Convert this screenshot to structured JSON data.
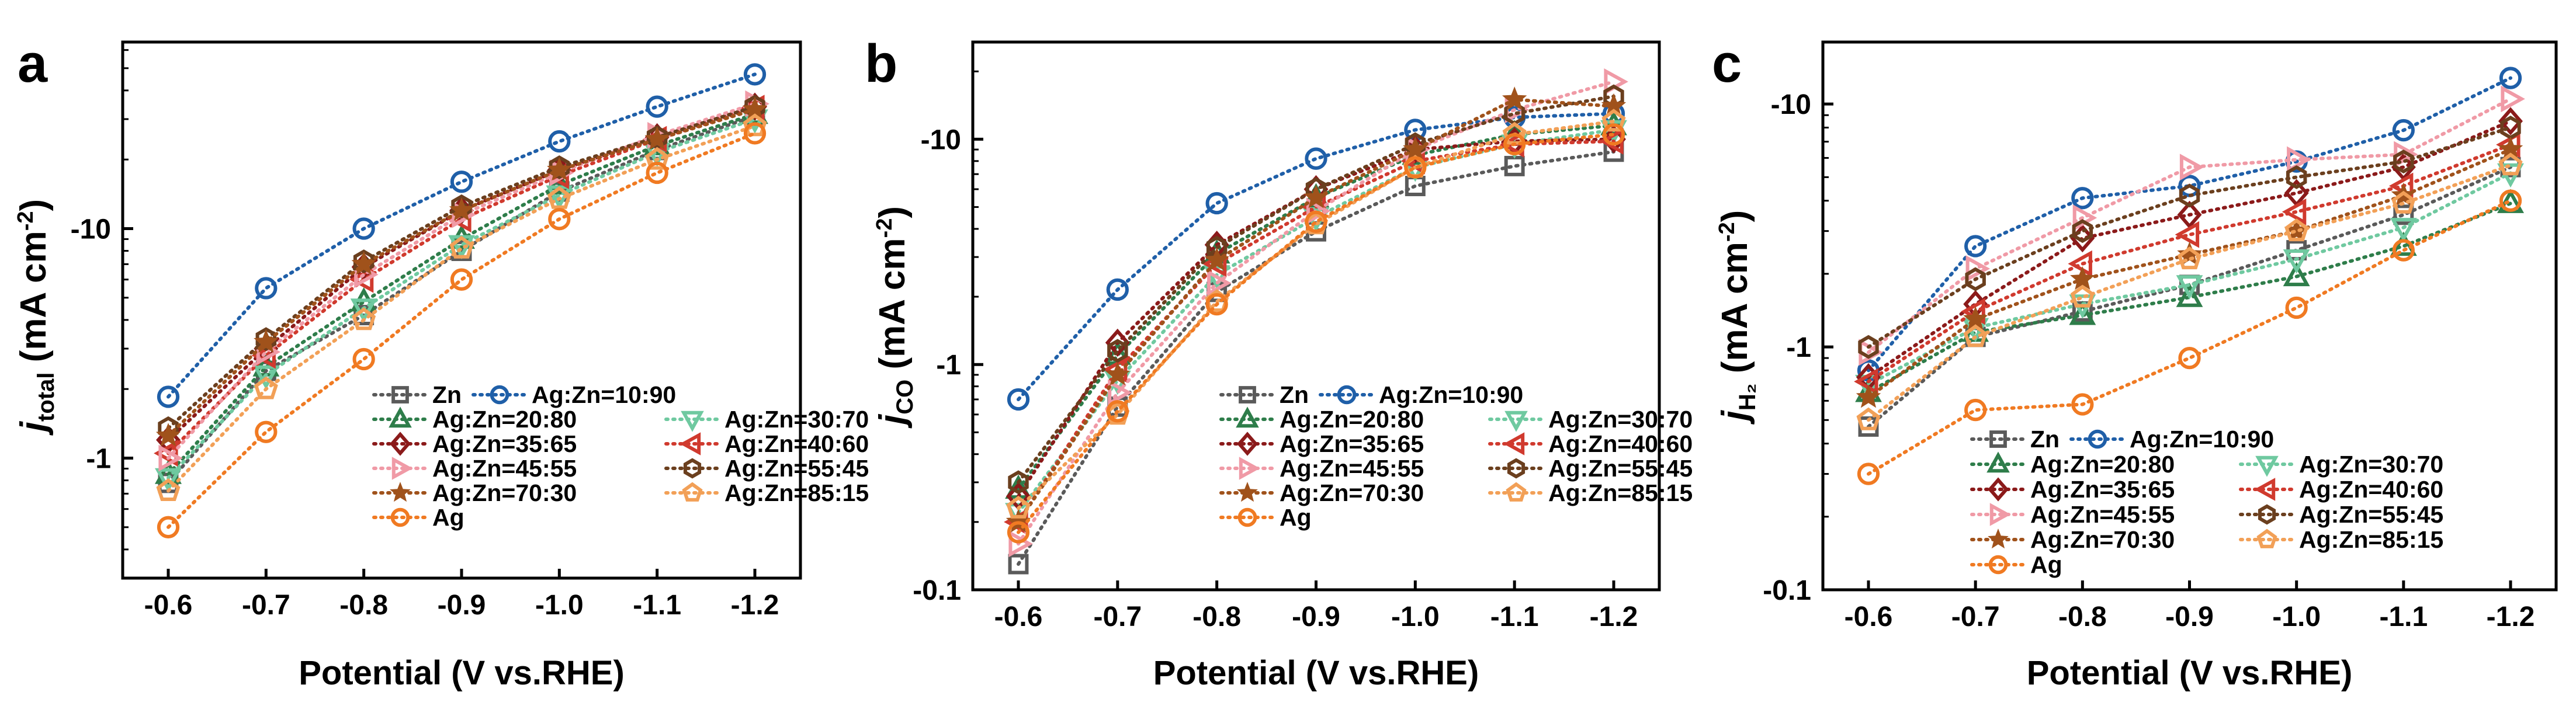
{
  "chart_data": [
    {
      "type": "line",
      "panel": "a",
      "title": "",
      "xlabel": "Potential (V vs.RHE)",
      "ylabel": {
        "main": "j",
        "sub": "total",
        "unit": " (mA cm",
        "exp": "-2",
        "close": ")"
      },
      "x_tick_labels": [
        "-0.6",
        "-0.7",
        "-0.8",
        "-0.9",
        "-1.0",
        "-1.1",
        "-1.2"
      ],
      "y_tick_labels": [
        {
          "value": 1,
          "label": "-1"
        },
        {
          "value": 10,
          "label": "-10"
        }
      ],
      "yscale": "log",
      "ylim": [
        0.3,
        65
      ],
      "legend_position": "lower-right",
      "series": [
        {
          "name": "Zn",
          "color": "#5a5a5a",
          "marker": "square",
          "values": [
            0.78,
            2.4,
            4.2,
            8.0,
            14.5,
            22.0,
            31.0
          ]
        },
        {
          "name": "Ag:Zn=10:90",
          "color": "#1f5fa8",
          "marker": "circle",
          "values": [
            1.85,
            5.5,
            10.0,
            16.0,
            24.0,
            34.0,
            47.0
          ]
        },
        {
          "name": "Ag:Zn=20:80",
          "color": "#2e7d4a",
          "marker": "triangle-up",
          "values": [
            0.85,
            2.5,
            4.8,
            9.0,
            15.5,
            23.0,
            31.5
          ]
        },
        {
          "name": "Ag:Zn=30:70",
          "color": "#6fc9a0",
          "marker": "triangle-down",
          "values": [
            0.82,
            2.3,
            4.5,
            8.5,
            14.0,
            21.5,
            30.0
          ]
        },
        {
          "name": "Ag:Zn=35:65",
          "color": "#8b1a1a",
          "marker": "diamond",
          "values": [
            1.2,
            3.0,
            6.8,
            12.0,
            18.0,
            25.0,
            34.0
          ]
        },
        {
          "name": "Ag:Zn=40:60",
          "color": "#d03a2e",
          "marker": "triangle-left",
          "values": [
            1.05,
            2.8,
            6.0,
            11.0,
            17.0,
            24.5,
            33.5
          ]
        },
        {
          "name": "Ag:Zn=45:55",
          "color": "#f09aa6",
          "marker": "triangle-right",
          "values": [
            1.0,
            2.9,
            6.3,
            11.5,
            17.5,
            25.5,
            35.0
          ]
        },
        {
          "name": "Ag:Zn=55:45",
          "color": "#6b3f1e",
          "marker": "hexagon",
          "values": [
            1.35,
            3.3,
            7.2,
            12.5,
            18.5,
            25.0,
            34.0
          ]
        },
        {
          "name": "Ag:Zn=70:30",
          "color": "#a0521b",
          "marker": "star",
          "values": [
            1.25,
            3.2,
            7.0,
            12.0,
            18.0,
            24.5,
            33.0
          ]
        },
        {
          "name": "Ag:Zn=85:15",
          "color": "#f2a057",
          "marker": "pentagon",
          "values": [
            0.72,
            2.0,
            4.0,
            8.2,
            13.5,
            20.0,
            28.0
          ]
        },
        {
          "name": "Ag",
          "color": "#f07a22",
          "marker": "circle",
          "values": [
            0.5,
            1.3,
            2.7,
            6.0,
            11.0,
            17.5,
            26.0
          ]
        }
      ]
    },
    {
      "type": "line",
      "panel": "b",
      "title": "",
      "xlabel": "Potential (V vs.RHE)",
      "ylabel": {
        "main": "j",
        "sub": "CO",
        "unit": " (mA cm",
        "exp": "-2",
        "close": ")"
      },
      "x_tick_labels": [
        "-0.6",
        "-0.7",
        "-0.8",
        "-0.9",
        "-1.0",
        "-1.1",
        "-1.2"
      ],
      "y_tick_labels": [
        {
          "value": 0.1,
          "label": "-0.1"
        },
        {
          "value": 1,
          "label": "-1"
        },
        {
          "value": 10,
          "label": "-10"
        }
      ],
      "yscale": "log",
      "ylim": [
        0.1,
        27
      ],
      "legend_position": "lower-right",
      "series": [
        {
          "name": "Zn",
          "color": "#5a5a5a",
          "marker": "square",
          "values": [
            0.13,
            0.65,
            2.1,
            3.9,
            6.2,
            7.6,
            8.8
          ]
        },
        {
          "name": "Ag:Zn=10:90",
          "color": "#1f5fa8",
          "marker": "circle",
          "values": [
            0.7,
            2.15,
            5.2,
            8.2,
            11.0,
            12.5,
            13.0
          ]
        },
        {
          "name": "Ag:Zn=20:80",
          "color": "#2e7d4a",
          "marker": "triangle-up",
          "values": [
            0.28,
            1.1,
            3.1,
            5.5,
            8.5,
            10.5,
            11.5
          ]
        },
        {
          "name": "Ag:Zn=30:70",
          "color": "#6fc9a0",
          "marker": "triangle-down",
          "values": [
            0.22,
            0.85,
            2.5,
            4.5,
            7.5,
            9.5,
            11.0
          ]
        },
        {
          "name": "Ag:Zn=35:65",
          "color": "#8b1a1a",
          "marker": "diamond",
          "values": [
            0.26,
            1.25,
            3.4,
            6.0,
            9.0,
            9.8,
            10.0
          ]
        },
        {
          "name": "Ag:Zn=40:60",
          "color": "#d03a2e",
          "marker": "triangle-left",
          "values": [
            0.2,
            0.95,
            2.8,
            5.0,
            8.0,
            9.5,
            9.8
          ]
        },
        {
          "name": "Ag:Zn=45:55",
          "color": "#f09aa6",
          "marker": "triangle-right",
          "values": [
            0.16,
            0.75,
            2.3,
            4.8,
            9.0,
            13.5,
            18.0
          ]
        },
        {
          "name": "Ag:Zn=55:45",
          "color": "#6b3f1e",
          "marker": "hexagon",
          "values": [
            0.3,
            1.15,
            3.3,
            6.0,
            9.5,
            13.0,
            15.5
          ]
        },
        {
          "name": "Ag:Zn=70:30",
          "color": "#a0521b",
          "marker": "star",
          "values": [
            0.2,
            0.9,
            2.9,
            5.5,
            9.0,
            15.0,
            14.0
          ]
        },
        {
          "name": "Ag:Zn=85:15",
          "color": "#f2a057",
          "marker": "pentagon",
          "values": [
            0.23,
            0.6,
            1.9,
            4.2,
            7.5,
            10.5,
            12.0
          ]
        },
        {
          "name": "Ag",
          "color": "#f07a22",
          "marker": "circle",
          "values": [
            0.18,
            0.62,
            1.85,
            4.3,
            7.5,
            9.5,
            10.5
          ]
        }
      ]
    },
    {
      "type": "line",
      "panel": "c",
      "title": "",
      "xlabel": "Potential (V vs.RHE)",
      "ylabel": {
        "main": "j",
        "sub": "H₂",
        "unit": " (mA cm",
        "exp": "-2",
        "close": ")"
      },
      "x_tick_labels": [
        "-0.6",
        "-0.7",
        "-0.8",
        "-0.9",
        "-1.0",
        "-1.1",
        "-1.2"
      ],
      "y_tick_labels": [
        {
          "value": 0.1,
          "label": "-0.1"
        },
        {
          "value": 1,
          "label": "-1"
        },
        {
          "value": 10,
          "label": "-10"
        }
      ],
      "yscale": "log",
      "ylim": [
        0.1,
        18
      ],
      "legend_position": "lower-right",
      "series": [
        {
          "name": "Zn",
          "color": "#5a5a5a",
          "marker": "square",
          "values": [
            0.47,
            1.1,
            1.4,
            1.8,
            2.5,
            3.5,
            5.5
          ]
        },
        {
          "name": "Ag:Zn=10:90",
          "color": "#1f5fa8",
          "marker": "circle",
          "values": [
            0.8,
            2.6,
            4.1,
            4.6,
            5.8,
            7.8,
            12.8
          ]
        },
        {
          "name": "Ag:Zn=20:80",
          "color": "#2e7d4a",
          "marker": "triangle-up",
          "values": [
            0.65,
            1.15,
            1.35,
            1.6,
            1.95,
            2.6,
            3.9
          ]
        },
        {
          "name": "Ag:Zn=30:70",
          "color": "#6fc9a0",
          "marker": "triangle-down",
          "values": [
            0.7,
            1.2,
            1.5,
            1.8,
            2.3,
            3.1,
            5.2
          ]
        },
        {
          "name": "Ag:Zn=35:65",
          "color": "#8b1a1a",
          "marker": "diamond",
          "values": [
            0.75,
            1.5,
            2.8,
            3.5,
            4.3,
            5.5,
            8.5
          ]
        },
        {
          "name": "Ag:Zn=40:60",
          "color": "#d03a2e",
          "marker": "triangle-left",
          "values": [
            0.72,
            1.4,
            2.2,
            2.9,
            3.6,
            4.6,
            6.8
          ]
        },
        {
          "name": "Ag:Zn=45:55",
          "color": "#f09aa6",
          "marker": "triangle-right",
          "values": [
            0.95,
            2.1,
            3.4,
            5.5,
            5.9,
            6.2,
            10.5
          ]
        },
        {
          "name": "Ag:Zn=55:45",
          "color": "#6b3f1e",
          "marker": "hexagon",
          "values": [
            1.0,
            1.9,
            3.0,
            4.2,
            5.0,
            5.8,
            8.0
          ]
        },
        {
          "name": "Ag:Zn=70:30",
          "color": "#a0521b",
          "marker": "star",
          "values": [
            0.62,
            1.3,
            1.9,
            2.4,
            3.0,
            4.2,
            6.5
          ]
        },
        {
          "name": "Ag:Zn=85:15",
          "color": "#f2a057",
          "marker": "pentagon",
          "values": [
            0.5,
            1.1,
            1.6,
            2.3,
            3.0,
            3.9,
            5.6
          ]
        },
        {
          "name": "Ag",
          "color": "#f07a22",
          "marker": "circle",
          "values": [
            0.3,
            0.55,
            0.58,
            0.9,
            1.45,
            2.5,
            4.0
          ]
        }
      ]
    }
  ]
}
